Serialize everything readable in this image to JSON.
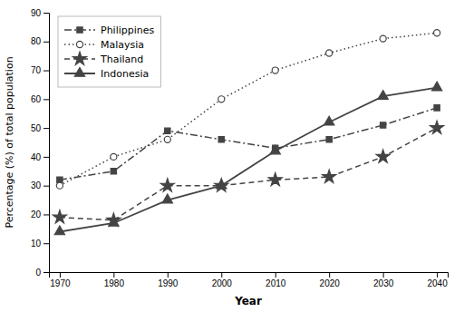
{
  "chart_data": {
    "type": "line",
    "xlabel": "Year",
    "ylabel": "Percentage (%) of total population",
    "x": [
      1970,
      1980,
      1990,
      2000,
      2010,
      2020,
      2030,
      2040
    ],
    "series": [
      {
        "name": "Philippines",
        "color": "#444444",
        "marker": "square",
        "line_style": "dashdot",
        "values": [
          32,
          35,
          49,
          46,
          43,
          46,
          51,
          57
        ]
      },
      {
        "name": "Malaysia",
        "color": "#444444",
        "marker": "open-circle",
        "line_style": "dotted",
        "values": [
          30,
          40,
          46,
          60,
          70,
          76,
          81,
          83
        ]
      },
      {
        "name": "Thailand",
        "color": "#444444",
        "marker": "star",
        "line_style": "dashed",
        "values": [
          19,
          18,
          30,
          30,
          32,
          33,
          40,
          50
        ]
      },
      {
        "name": "Indonesia",
        "color": "#444444",
        "marker": "triangle",
        "line_style": "solid",
        "values": [
          14,
          17,
          25,
          30,
          42,
          52,
          61,
          64
        ]
      }
    ],
    "xlim": [
      1968,
      2042
    ],
    "ylim": [
      0,
      90
    ],
    "xticks": [
      1970,
      1980,
      1990,
      2000,
      2010,
      2020,
      2030,
      2040
    ],
    "yticks": [
      0,
      10,
      20,
      30,
      40,
      50,
      60,
      70,
      80,
      90
    ],
    "grid": false,
    "legend": "upper left"
  }
}
